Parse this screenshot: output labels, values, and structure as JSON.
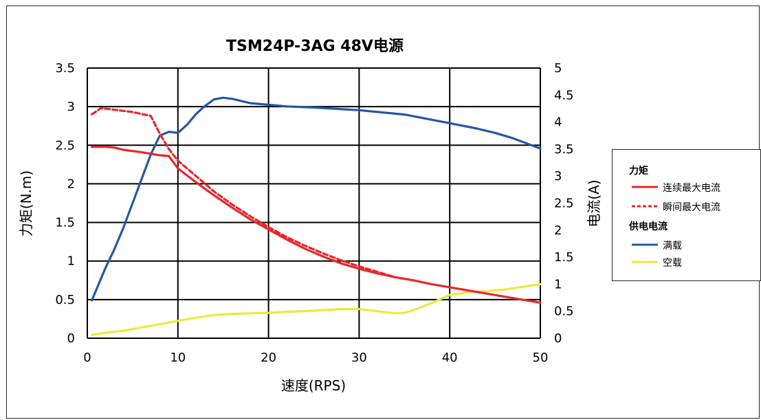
{
  "chart_data": {
    "type": "line",
    "title": "TSM24P-3AG  48V电源",
    "xlabel": "速度(RPS)",
    "ylabel_left": "力矩(N.m)",
    "ylabel_right": "电流(A)",
    "xlim": [
      0,
      50
    ],
    "ylim_left": [
      0,
      3.5
    ],
    "ylim_right": [
      0,
      5
    ],
    "x_ticks": [
      "0",
      "10",
      "20",
      "30",
      "40",
      "50"
    ],
    "y_left_ticks": [
      "0",
      "0.5",
      "1",
      "1.5",
      "2",
      "2.5",
      "3",
      "3.5"
    ],
    "y_right_ticks": [
      "0",
      "0.5",
      "1",
      "1.5",
      "2",
      "2.5",
      "3",
      "3.5",
      "4",
      "4.5",
      "5"
    ],
    "grid": true,
    "legend_position": "right",
    "legend": {
      "torque_group": "力矩",
      "current_group": "供电电流"
    },
    "series": [
      {
        "name": "连续最大电流",
        "group": "torque",
        "axis": "left",
        "color": "#e8262a",
        "dash": false,
        "x": [
          0.5,
          2,
          3,
          4,
          6,
          8,
          9,
          10,
          12,
          14,
          16,
          18,
          20,
          22,
          24,
          26,
          28,
          30,
          32,
          34,
          36,
          38,
          40,
          42,
          44,
          46,
          48,
          50
        ],
        "y": [
          2.48,
          2.48,
          2.47,
          2.44,
          2.41,
          2.37,
          2.36,
          2.2,
          2.02,
          1.85,
          1.69,
          1.54,
          1.41,
          1.28,
          1.16,
          1.06,
          0.97,
          0.9,
          0.84,
          0.79,
          0.75,
          0.7,
          0.66,
          0.62,
          0.58,
          0.54,
          0.5,
          0.46
        ]
      },
      {
        "name": "瞬间最大电流",
        "group": "torque",
        "axis": "left",
        "color": "#e8262a",
        "dash": true,
        "x": [
          0.5,
          1.5,
          3,
          5,
          7,
          8,
          9,
          10,
          12,
          14,
          16,
          18,
          20,
          22,
          24,
          26,
          28,
          30,
          32,
          34
        ],
        "y": [
          2.9,
          2.98,
          2.96,
          2.93,
          2.88,
          2.65,
          2.45,
          2.3,
          2.1,
          1.9,
          1.73,
          1.58,
          1.44,
          1.31,
          1.2,
          1.1,
          1.01,
          0.93,
          0.86,
          0.79
        ]
      },
      {
        "name": "满载",
        "group": "current",
        "axis": "right",
        "color": "#2456a4",
        "dash": false,
        "x": [
          0.5,
          2,
          3,
          4,
          5,
          6,
          7,
          8,
          9,
          10,
          11,
          12,
          13,
          14,
          15,
          16,
          17,
          18,
          20,
          22,
          25,
          30,
          35,
          40,
          43,
          45,
          47,
          50
        ],
        "y": [
          0.7,
          1.3,
          1.65,
          2.05,
          2.5,
          2.95,
          3.4,
          3.75,
          3.82,
          3.8,
          3.95,
          4.15,
          4.3,
          4.42,
          4.45,
          4.43,
          4.39,
          4.35,
          4.32,
          4.29,
          4.27,
          4.22,
          4.14,
          3.98,
          3.88,
          3.8,
          3.7,
          3.51
        ]
      },
      {
        "name": "空载",
        "group": "current",
        "axis": "right",
        "color": "#eaea3a",
        "dash": false,
        "x": [
          0.5,
          2,
          4,
          6,
          8,
          10,
          12,
          14,
          16,
          18,
          20,
          22,
          24,
          26,
          28,
          30,
          32,
          34,
          35,
          36,
          38,
          40,
          42,
          44,
          46,
          48,
          50
        ],
        "y": [
          0.06,
          0.1,
          0.14,
          0.2,
          0.26,
          0.32,
          0.38,
          0.43,
          0.45,
          0.46,
          0.47,
          0.49,
          0.5,
          0.52,
          0.54,
          0.54,
          0.5,
          0.46,
          0.47,
          0.52,
          0.65,
          0.8,
          0.85,
          0.87,
          0.9,
          0.95,
          1.0
        ]
      }
    ]
  }
}
